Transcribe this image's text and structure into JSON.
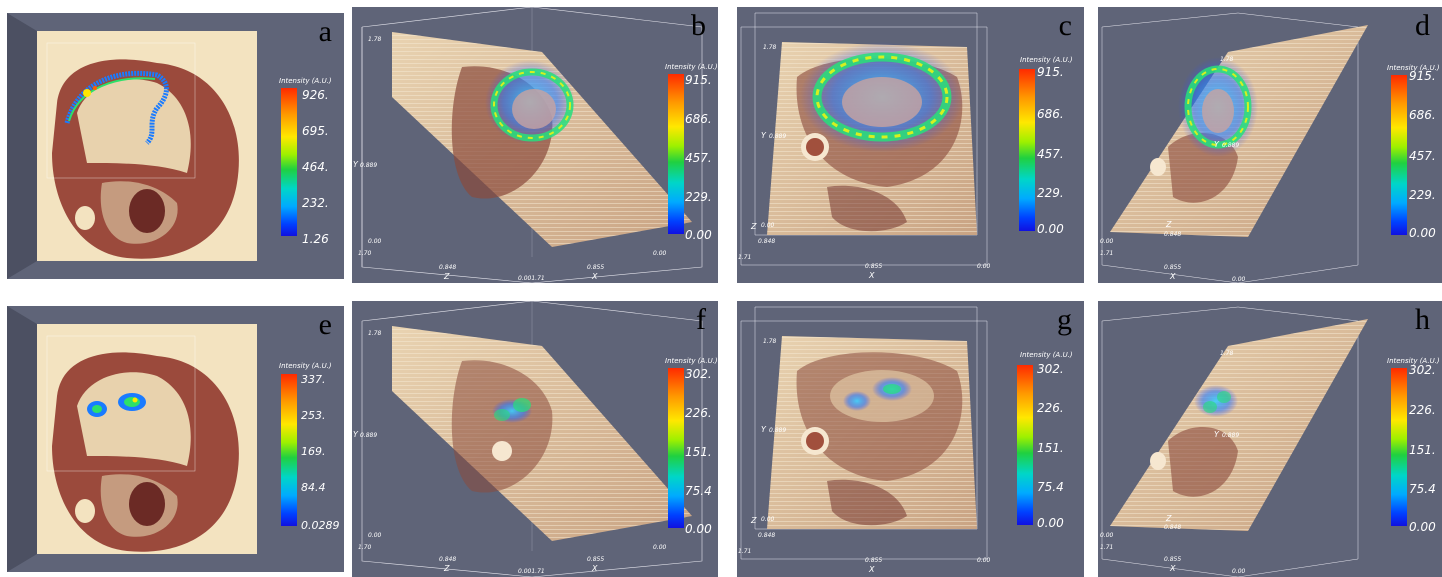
{
  "panels": {
    "a": {
      "letter": "a",
      "cb_title": "Intensity (A.U.)",
      "ticks": [
        "926.",
        "695.",
        "464.",
        "232.",
        "1.26"
      ]
    },
    "b": {
      "letter": "b",
      "cb_title": "Intensity (A.U.)",
      "ticks": [
        "915.",
        "686.",
        "457.",
        "229.",
        "0.00"
      ],
      "axes": {
        "y_top": "1.78",
        "y_mid": "0.889",
        "y_bot": "0.00",
        "z_left": "1.70",
        "z_mid": "0.848",
        "z_right": "0.001.71",
        "x_mid": "0.855",
        "x_right": "0.00",
        "y_name": "Y",
        "z_name": "Z",
        "x_name": "X"
      }
    },
    "c": {
      "letter": "c",
      "cb_title": "Intensity (A.U.)",
      "ticks": [
        "915.",
        "686.",
        "457.",
        "229.",
        "0.00"
      ],
      "axes": {
        "y_top": "1.78",
        "y_mid": "0.889",
        "z_a": "0.00",
        "z_b": "0.848",
        "x_left": "1.71",
        "x_mid": "0.855",
        "x_right": "0.00",
        "y_name": "Y",
        "z_name": "Z",
        "x_name": "X"
      }
    },
    "d": {
      "letter": "d",
      "cb_title": "Intensity (A.U.)",
      "ticks": [
        "915.",
        "686.",
        "457.",
        "229.",
        "0.00"
      ],
      "axes": {
        "y_top": "1.78",
        "y_mid": "0.889",
        "z_mid": "0.848",
        "left_a": "0.00",
        "left_b": "1.71",
        "x_mid": "0.855",
        "x_right": "0.00",
        "y_name": "Y",
        "z_name": "Z",
        "x_name": "X"
      }
    },
    "e": {
      "letter": "e",
      "cb_title": "Intensity (A.U.)",
      "ticks": [
        "337.",
        "253.",
        "169.",
        "84.4",
        "0.0289"
      ]
    },
    "f": {
      "letter": "f",
      "cb_title": "Intensity (A.U.)",
      "ticks": [
        "302.",
        "226.",
        "151.",
        "75.4",
        "0.00"
      ],
      "axes": {
        "y_top": "1.78",
        "y_mid": "0.889",
        "y_bot": "0.00",
        "z_left": "1.70",
        "z_mid": "0.848",
        "z_right": "0.001.71",
        "x_mid": "0.855",
        "x_right": "0.00",
        "y_name": "Y",
        "z_name": "Z",
        "x_name": "X"
      }
    },
    "g": {
      "letter": "g",
      "cb_title": "Intensity (A.U.)",
      "ticks": [
        "302.",
        "226.",
        "151.",
        "75.4",
        "0.00"
      ],
      "axes": {
        "y_top": "1.78",
        "y_mid": "0.889",
        "z_a": "0.00",
        "z_b": "0.848",
        "x_left": "1.71",
        "x_mid": "0.855",
        "x_right": "0.00",
        "y_name": "Y",
        "z_name": "Z",
        "x_name": "X"
      }
    },
    "h": {
      "letter": "h",
      "cb_title": "Intensity (A.U.)",
      "ticks": [
        "302.",
        "226.",
        "151.",
        "75.4",
        "0.00"
      ],
      "axes": {
        "y_top": "1.78",
        "y_mid": "0.889",
        "z_mid": "0.848",
        "left_a": "0.00",
        "left_b": "1.71",
        "x_mid": "0.855",
        "x_right": "0.00",
        "y_name": "Y",
        "z_name": "Z",
        "x_name": "X"
      }
    }
  },
  "colors": {
    "background": "#5f6478",
    "tissue_light": "#f3e3c0",
    "tissue_dark": "#8a3a30",
    "wireframe": "#e6e6ee"
  }
}
